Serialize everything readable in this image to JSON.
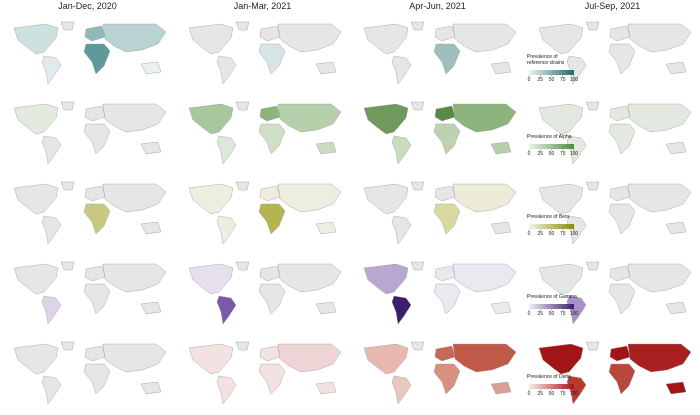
{
  "column_titles": [
    "Jan-Dec, 2020",
    "Jan-Mar, 2021",
    "Apr-Jun, 2021",
    "Jul-Sep, 2021"
  ],
  "legend_ticks": [
    0,
    25,
    50,
    75,
    100
  ],
  "rows": [
    {
      "legend_title": [
        "Prevalence of",
        "reference strains"
      ],
      "scale": [
        "#eef3f3",
        "#1e6b6b"
      ],
      "panels": [
        [
          "#cfe0e0",
          "#e0ecec",
          "#8fb8b8",
          "#5f9a9a",
          "#b9d2d2",
          "#e8f0f0"
        ],
        [
          "#e6e6e6",
          "#e6e6e6",
          "#e6e6e6",
          "#d8e5e5",
          "#e6e6e6",
          "#e6e6e6"
        ],
        [
          "#e6e6e6",
          "#e6e6e6",
          "#e6e6e6",
          "#9fbfbf",
          "#e6e6e6",
          "#e6e6e6"
        ],
        [
          "#e6e6e6",
          "#e6e6e6",
          "#e6e6e6",
          "#e6e6e6",
          "#e6e6e6",
          "#e6e6e6"
        ]
      ]
    },
    {
      "legend_title": [
        "Prevalence of Alpha"
      ],
      "scale": [
        "#eef3ec",
        "#4e8b3a"
      ],
      "panels": [
        [
          "#e3ebe0",
          "#e6e6e6",
          "#e6e6e6",
          "#e6e6e6",
          "#e6e6e6",
          "#e6e6e6"
        ],
        [
          "#a9c79c",
          "#dde8d8",
          "#8cb47c",
          "#d0e0c8",
          "#b5cfaa",
          "#c9dcc0"
        ],
        [
          "#6f9a5c",
          "#c9dcc0",
          "#5a8a48",
          "#bcd3b2",
          "#8cb47c",
          "#b5cfaa"
        ],
        [
          "#e3e8e0",
          "#e3e8e0",
          "#e3e8e0",
          "#e3e8e0",
          "#e3e8e0",
          "#e3e8e0"
        ]
      ]
    },
    {
      "legend_title": [
        "Prevalence of Beta"
      ],
      "scale": [
        "#f3f3e6",
        "#8a8a10"
      ],
      "panels": [
        [
          "#e6e6e6",
          "#e6e6e6",
          "#e6e6e6",
          "#c8c880",
          "#e6e6e6",
          "#e6e6e6"
        ],
        [
          "#eeeee0",
          "#eeeee0",
          "#eeeee0",
          "#b5b550",
          "#eeeee0",
          "#eeeee0"
        ],
        [
          "#e6e6e6",
          "#e6e6e6",
          "#e6e6e6",
          "#d8d8a0",
          "#ebebd8",
          "#e6e6e6"
        ],
        [
          "#e6e6e6",
          "#e6e6e6",
          "#e6e6e6",
          "#e6e6e6",
          "#e6e6e6",
          "#e6e6e6"
        ]
      ]
    },
    {
      "legend_title": [
        "Prevalence of Gamma"
      ],
      "scale": [
        "#f1eef5",
        "#3c1f6b"
      ],
      "panels": [
        [
          "#e6e6e6",
          "#ddd5e6",
          "#e6e6e6",
          "#e6e6e6",
          "#e6e6e6",
          "#e6e6e6"
        ],
        [
          "#e6e0ee",
          "#7a5aa8",
          "#e6e6e6",
          "#e6e6e6",
          "#e6e6e6",
          "#e6e6e6"
        ],
        [
          "#b8a8d0",
          "#3c1f6b",
          "#ece8f0",
          "#ece8f0",
          "#ece8f0",
          "#ece8f0"
        ],
        [
          "#e6e6e6",
          "#a890c8",
          "#e6e6e6",
          "#e6e6e6",
          "#e6e6e6",
          "#e6e6e6"
        ]
      ]
    },
    {
      "legend_title": [
        "Prevalence of Delta"
      ],
      "scale": [
        "#f6ecec",
        "#a31515"
      ],
      "panels": [
        [
          "#e6e6e6",
          "#e6e6e6",
          "#e6e6e6",
          "#e6e6e6",
          "#e6e6e6",
          "#e6e6e6"
        ],
        [
          "#f2e2e2",
          "#f2e2e2",
          "#f2e2e2",
          "#f2e2e2",
          "#efd5d5",
          "#f2e2e2"
        ],
        [
          "#e8b8b0",
          "#e8c8c0",
          "#c86858",
          "#d89080",
          "#c05a48",
          "#d8a090"
        ],
        [
          "#a31515",
          "#b83a30",
          "#a31515",
          "#b8483c",
          "#a82020",
          "#a31515"
        ]
      ]
    }
  ]
}
